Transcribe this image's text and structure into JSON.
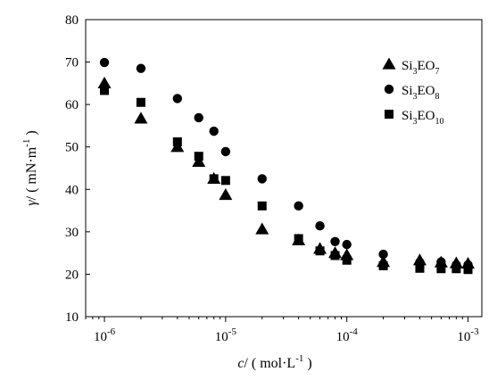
{
  "chart_data": {
    "type": "scatter",
    "xscale": "log",
    "xlim": [
      7e-07,
      0.0013
    ],
    "ylim": [
      10,
      80
    ],
    "grid": false,
    "legend_position": "top-right",
    "xlabel": {
      "italic": "c",
      "rest": "/ ( mol·L",
      "sup": "-1",
      "tail": " )"
    },
    "ylabel": {
      "italic": "γ",
      "rest": "/ ( mN·m",
      "sup": "-1",
      "tail": " )"
    },
    "y_ticks": [
      {
        "value": 10,
        "label": "10"
      },
      {
        "value": 20,
        "label": "20"
      },
      {
        "value": 30,
        "label": "30"
      },
      {
        "value": 40,
        "label": "40"
      },
      {
        "value": 50,
        "label": "50"
      },
      {
        "value": 60,
        "label": "60"
      },
      {
        "value": 70,
        "label": "70"
      },
      {
        "value": 80,
        "label": "80"
      }
    ],
    "x_ticks": [
      {
        "value": 1e-06,
        "base": "10",
        "exp": "-6"
      },
      {
        "value": 1e-05,
        "base": "10",
        "exp": "-5"
      },
      {
        "value": 0.0001,
        "base": "10",
        "exp": "-4"
      },
      {
        "value": 0.001,
        "base": "10",
        "exp": "-3"
      }
    ],
    "series": [
      {
        "name": "Si3EO7",
        "name_base": "Si",
        "name_sub1": "3",
        "name_mid": "EO",
        "name_sub2": "7",
        "marker": "triangle",
        "color": "#000000",
        "points": [
          [
            1e-06,
            65.0
          ],
          [
            2e-06,
            56.7
          ],
          [
            4e-06,
            50.0
          ],
          [
            6e-06,
            46.5
          ],
          [
            8e-06,
            42.5
          ],
          [
            1e-05,
            38.7
          ],
          [
            2e-05,
            30.6
          ],
          [
            4e-05,
            28.0
          ],
          [
            6e-05,
            26.0
          ],
          [
            8e-05,
            25.0
          ],
          [
            0.0001,
            24.5
          ],
          [
            0.0002,
            22.9
          ],
          [
            0.0004,
            23.3
          ],
          [
            0.0006,
            22.8
          ],
          [
            0.0008,
            22.6
          ],
          [
            0.001,
            22.5
          ]
        ]
      },
      {
        "name": "Si3EO8",
        "name_base": "Si",
        "name_sub1": "3",
        "name_mid": "EO",
        "name_sub2": "8",
        "marker": "circle",
        "color": "#000000",
        "points": [
          [
            1e-06,
            69.9
          ],
          [
            2e-06,
            68.5
          ],
          [
            4e-06,
            61.4
          ],
          [
            6e-06,
            56.9
          ],
          [
            8e-06,
            53.7
          ],
          [
            1e-05,
            48.9
          ],
          [
            2e-05,
            42.5
          ],
          [
            4e-05,
            36.1
          ],
          [
            6e-05,
            31.4
          ],
          [
            8e-05,
            27.7
          ],
          [
            0.0001,
            27.0
          ],
          [
            0.0002,
            24.7
          ],
          [
            0.0004,
            22.8
          ],
          [
            0.0006,
            22.9
          ],
          [
            0.0008,
            22.2
          ],
          [
            0.001,
            22.2
          ]
        ]
      },
      {
        "name": "Si3EO10",
        "name_base": "Si",
        "name_sub1": "3",
        "name_mid": "EO",
        "name_sub2": "10",
        "marker": "square",
        "color": "#000000",
        "points": [
          [
            1e-06,
            63.3
          ],
          [
            2e-06,
            60.5
          ],
          [
            4e-06,
            51.2
          ],
          [
            6e-06,
            47.8
          ],
          [
            8e-06,
            42.5
          ],
          [
            1e-05,
            42.1
          ],
          [
            2e-05,
            36.1
          ],
          [
            4e-05,
            28.4
          ],
          [
            6e-05,
            25.5
          ],
          [
            8e-05,
            24.4
          ],
          [
            0.0001,
            23.3
          ],
          [
            0.0002,
            22.0
          ],
          [
            0.0004,
            21.4
          ],
          [
            0.0006,
            21.3
          ],
          [
            0.0008,
            21.3
          ],
          [
            0.001,
            21.1
          ]
        ]
      }
    ]
  }
}
